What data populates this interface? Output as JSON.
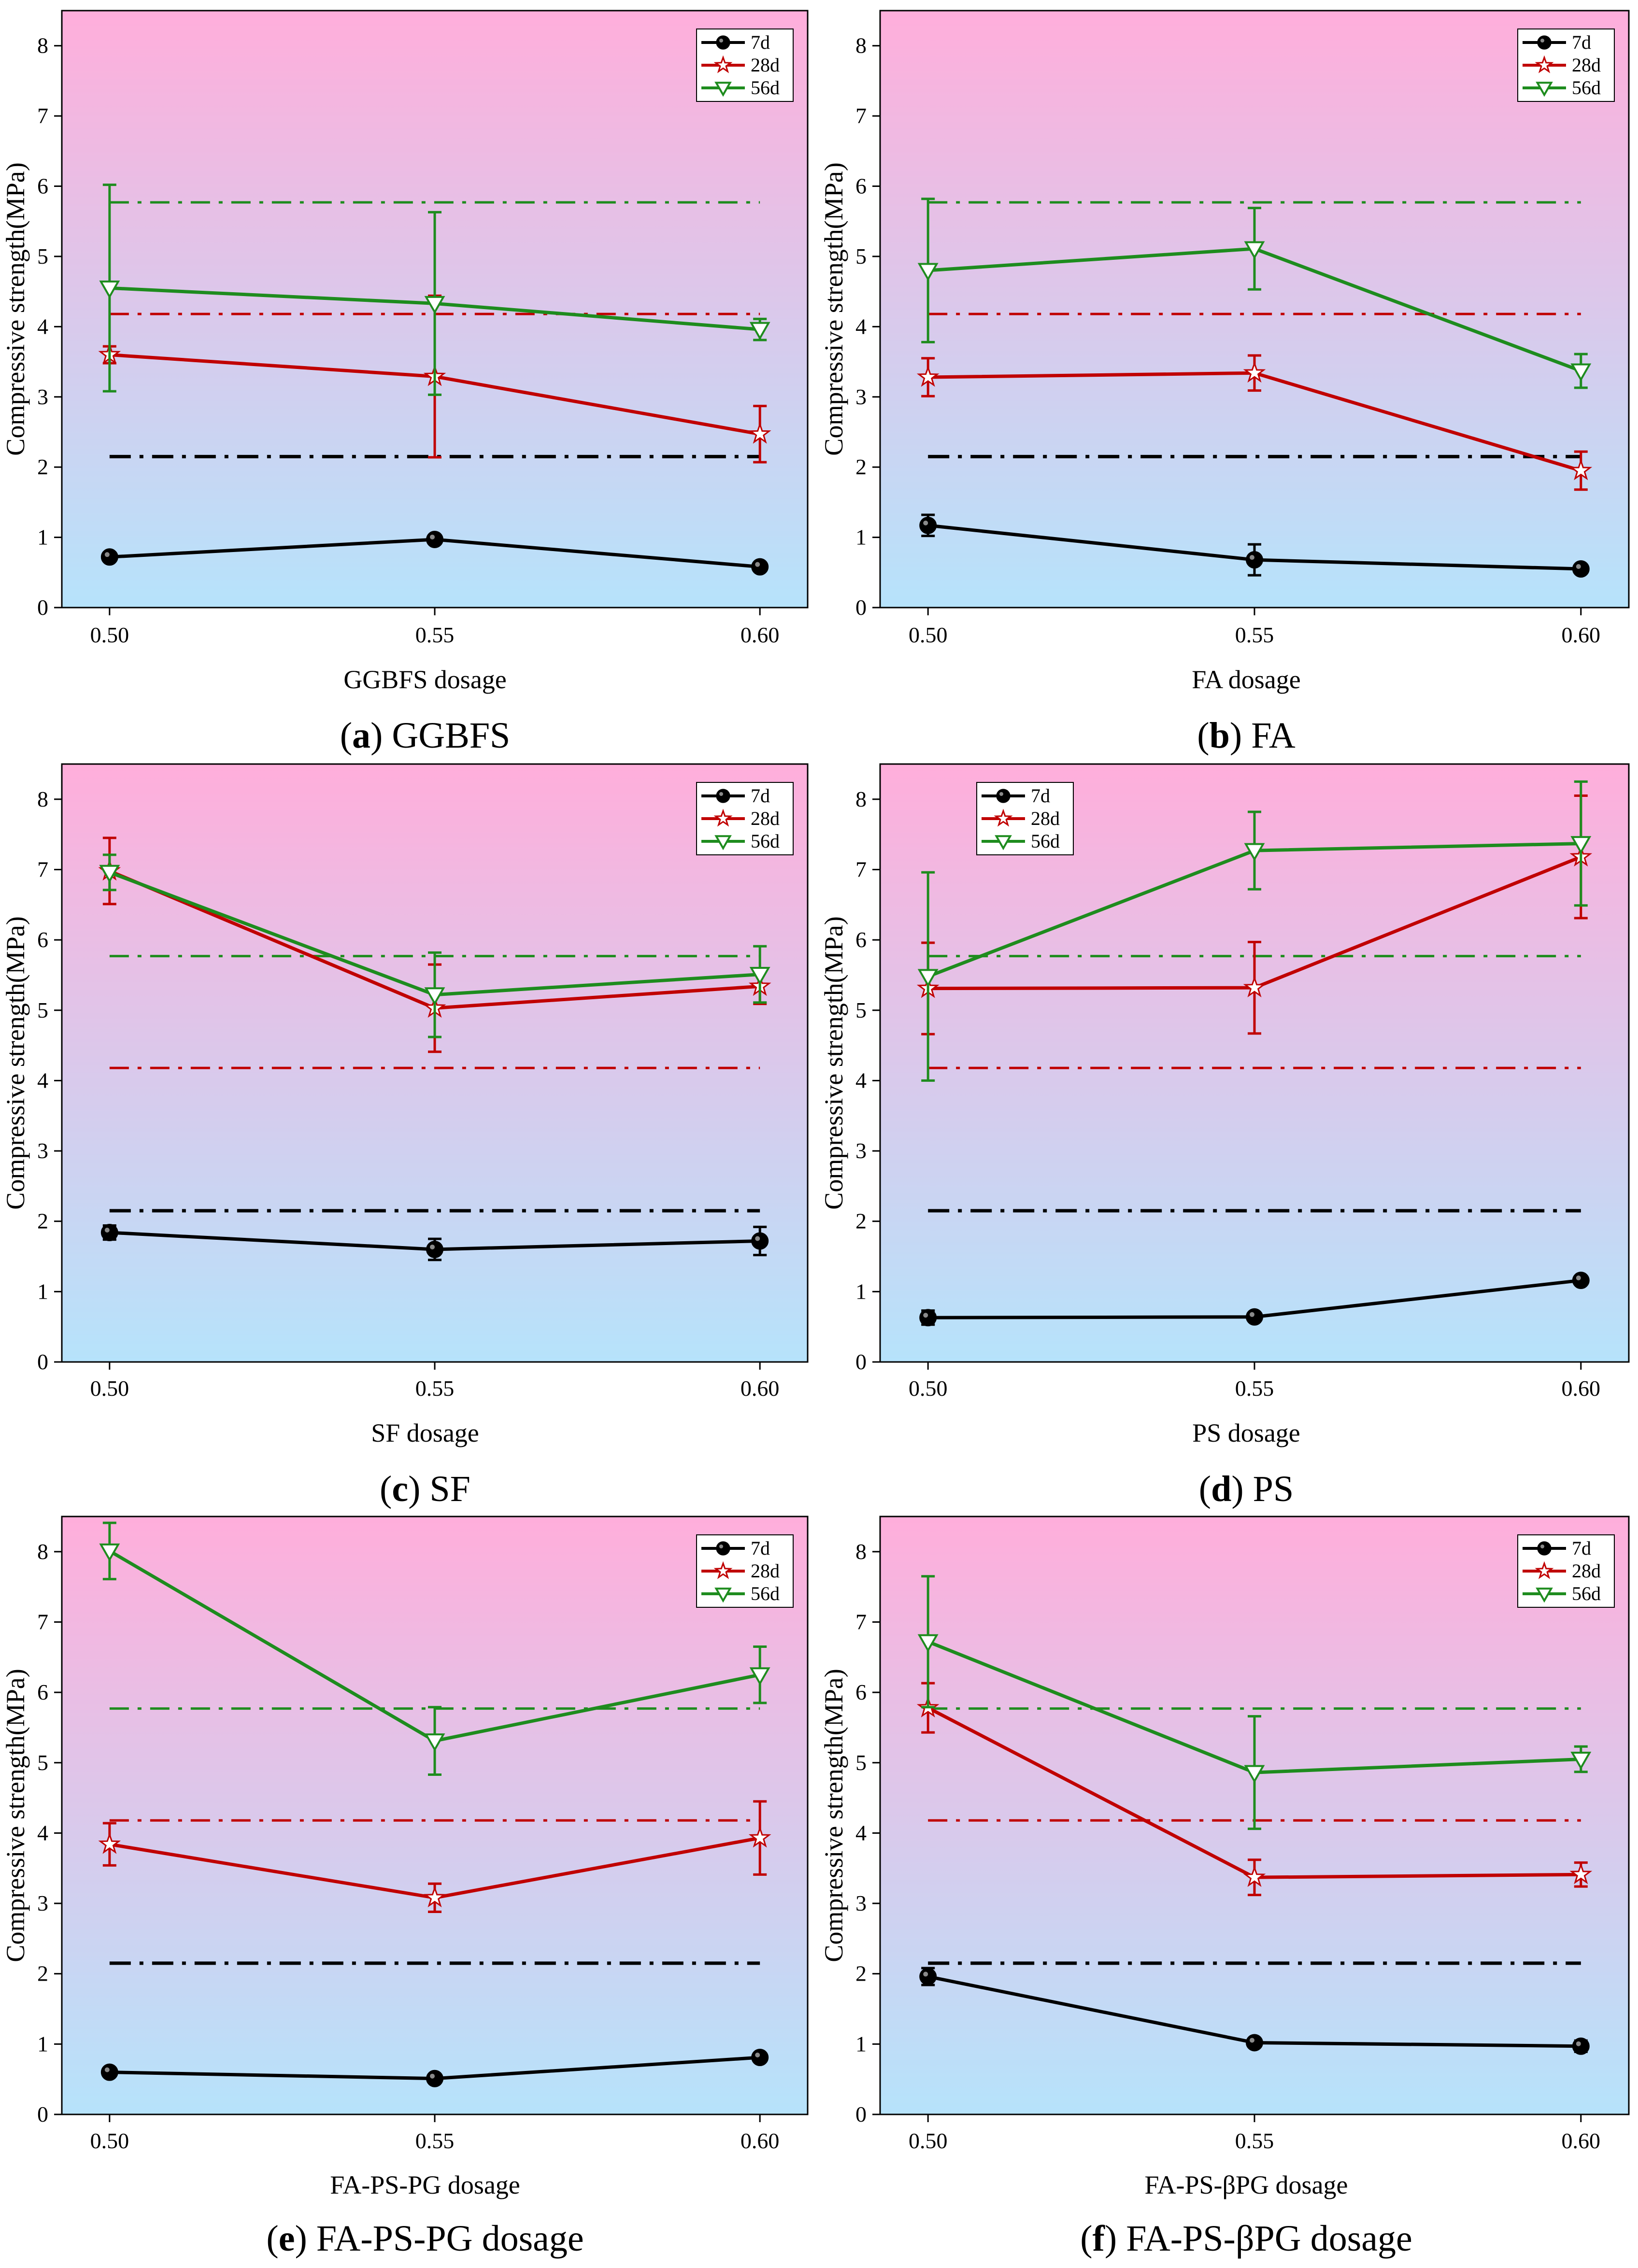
{
  "figure": {
    "colors": {
      "d7": "#000000",
      "d28": "#c00000",
      "d56": "#1e8c1e",
      "bg_top": "#ffaedb",
      "bg_bottom": "#b6e3fb"
    },
    "legend_labels": [
      "7d",
      "28d",
      "56d"
    ],
    "reference_lines": {
      "d7": 2.15,
      "d28": 4.18,
      "d56": 5.77
    }
  },
  "chart_data": [
    {
      "type": "line",
      "panel": "a",
      "caption_letter": "a",
      "caption_text": "GGBFS",
      "xlabel": "GGBFS dosage",
      "ylabel": "Compressive strength(MPa)",
      "x": [
        0.5,
        0.55,
        0.6
      ],
      "xticks": [
        "0.50",
        "0.55",
        "0.60"
      ],
      "ylim": [
        0,
        8.5
      ],
      "yticks": [
        "0",
        "1",
        "2",
        "3",
        "4",
        "5",
        "6",
        "7",
        "8"
      ],
      "legend": "top-right",
      "series": [
        {
          "name": "7d",
          "values": [
            0.72,
            0.97,
            0.58
          ],
          "errors": [
            0.04,
            0.05,
            0.04
          ]
        },
        {
          "name": "28d",
          "values": [
            3.6,
            3.29,
            2.47
          ],
          "errors": [
            0.12,
            1.15,
            0.4
          ]
        },
        {
          "name": "56d",
          "values": [
            4.55,
            4.33,
            3.96
          ],
          "errors": [
            1.47,
            1.3,
            0.15
          ]
        }
      ]
    },
    {
      "type": "line",
      "panel": "b",
      "caption_letter": "b",
      "caption_text": "FA",
      "xlabel": "FA dosage",
      "ylabel": "Compressive strength(MPa)",
      "x": [
        0.5,
        0.55,
        0.6
      ],
      "xticks": [
        "0.50",
        "0.55",
        "0.60"
      ],
      "ylim": [
        0,
        8.5
      ],
      "yticks": [
        "0",
        "1",
        "2",
        "3",
        "4",
        "5",
        "6",
        "7",
        "8"
      ],
      "legend": "top-right",
      "series": [
        {
          "name": "7d",
          "values": [
            1.17,
            0.68,
            0.55
          ],
          "errors": [
            0.15,
            0.22,
            0.05
          ]
        },
        {
          "name": "28d",
          "values": [
            3.28,
            3.34,
            1.95
          ],
          "errors": [
            0.27,
            0.25,
            0.27
          ]
        },
        {
          "name": "56d",
          "values": [
            4.8,
            5.11,
            3.37
          ],
          "errors": [
            1.02,
            0.58,
            0.24
          ]
        }
      ]
    },
    {
      "type": "line",
      "panel": "c",
      "caption_letter": "c",
      "caption_text": "SF",
      "xlabel": "SF dosage",
      "ylabel": "Compressive strength(MPa)",
      "x": [
        0.5,
        0.55,
        0.6
      ],
      "xticks": [
        "0.50",
        "0.55",
        "0.60"
      ],
      "ylim": [
        0,
        8.5
      ],
      "yticks": [
        "0",
        "1",
        "2",
        "3",
        "4",
        "5",
        "6",
        "7",
        "8"
      ],
      "legend": "top-right",
      "series": [
        {
          "name": "7d",
          "values": [
            1.84,
            1.6,
            1.72
          ],
          "errors": [
            0.1,
            0.15,
            0.2
          ]
        },
        {
          "name": "28d",
          "values": [
            6.98,
            5.03,
            5.34
          ],
          "errors": [
            0.47,
            0.62,
            0.25
          ]
        },
        {
          "name": "56d",
          "values": [
            6.96,
            5.22,
            5.51
          ],
          "errors": [
            0.25,
            0.6,
            0.4
          ]
        }
      ]
    },
    {
      "type": "line",
      "panel": "d",
      "caption_letter": "d",
      "caption_text": "PS",
      "xlabel": "PS dosage",
      "ylabel": "Compressive strength(MPa)",
      "x": [
        0.5,
        0.55,
        0.6
      ],
      "xticks": [
        "0.50",
        "0.55",
        "0.60"
      ],
      "ylim": [
        0,
        8.5
      ],
      "yticks": [
        "0",
        "1",
        "2",
        "3",
        "4",
        "5",
        "6",
        "7",
        "8"
      ],
      "legend": "top-left",
      "series": [
        {
          "name": "7d",
          "values": [
            0.63,
            0.64,
            1.16
          ],
          "errors": [
            0.1,
            0.05,
            0.05
          ]
        },
        {
          "name": "28d",
          "values": [
            5.31,
            5.32,
            7.18
          ],
          "errors": [
            0.65,
            0.65,
            0.87
          ]
        },
        {
          "name": "56d",
          "values": [
            5.48,
            7.27,
            7.37
          ],
          "errors": [
            1.48,
            0.55,
            0.88
          ]
        }
      ]
    },
    {
      "type": "line",
      "panel": "e",
      "caption_letter": "e",
      "caption_text": "FA-PS-PG dosage",
      "xlabel": "FA-PS-PG dosage",
      "ylabel": "Compressive strength(MPa)",
      "x": [
        0.5,
        0.55,
        0.6
      ],
      "xticks": [
        "0.50",
        "0.55",
        "0.60"
      ],
      "ylim": [
        0,
        8.5
      ],
      "yticks": [
        "0",
        "1",
        "2",
        "3",
        "4",
        "5",
        "6",
        "7",
        "8"
      ],
      "legend": "top-right",
      "series": [
        {
          "name": "7d",
          "values": [
            0.6,
            0.51,
            0.81
          ],
          "errors": [
            0.06,
            0.05,
            0.05
          ]
        },
        {
          "name": "28d",
          "values": [
            3.84,
            3.08,
            3.93
          ],
          "errors": [
            0.3,
            0.2,
            0.52
          ]
        },
        {
          "name": "56d",
          "values": [
            8.01,
            5.31,
            6.25
          ],
          "errors": [
            0.4,
            0.48,
            0.4
          ]
        }
      ]
    },
    {
      "type": "line",
      "panel": "f",
      "caption_letter": "f",
      "caption_text": "FA-PS-βPG dosage",
      "xlabel": "FA-PS-βPG dosage",
      "ylabel": "Compressive strength(MPa)",
      "x": [
        0.5,
        0.55,
        0.6
      ],
      "xticks": [
        "0.50",
        "0.55",
        "0.60"
      ],
      "ylim": [
        0,
        8.5
      ],
      "yticks": [
        "0",
        "1",
        "2",
        "3",
        "4",
        "5",
        "6",
        "7",
        "8"
      ],
      "legend": "top-right",
      "series": [
        {
          "name": "7d",
          "values": [
            1.96,
            1.02,
            0.97
          ],
          "errors": [
            0.12,
            0.06,
            0.08
          ]
        },
        {
          "name": "28d",
          "values": [
            5.78,
            3.37,
            3.41
          ],
          "errors": [
            0.35,
            0.25,
            0.17
          ]
        },
        {
          "name": "56d",
          "values": [
            6.72,
            4.86,
            5.05
          ],
          "errors": [
            0.93,
            0.8,
            0.18
          ]
        }
      ]
    }
  ]
}
